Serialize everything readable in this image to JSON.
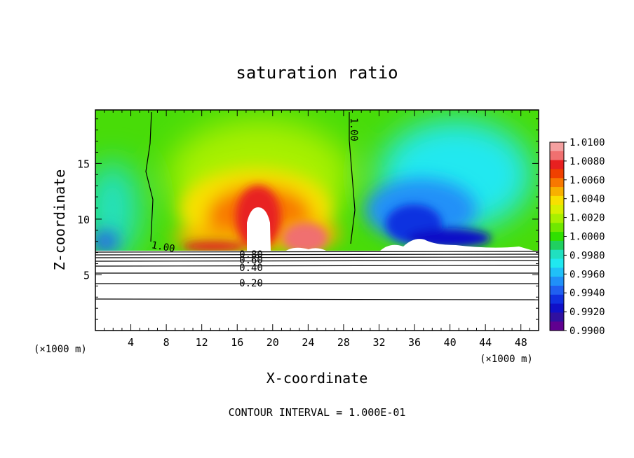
{
  "chart_data": {
    "type": "heatmap",
    "title": "saturation ratio",
    "xlabel": "X-coordinate",
    "ylabel": "Z-coordinate",
    "x_unit": "(×1000 m)",
    "z_unit": "(×1000 m)",
    "xlim": [
      0,
      50
    ],
    "ylim": [
      0,
      19.8
    ],
    "x_ticks": [
      4,
      8,
      12,
      16,
      20,
      24,
      28,
      32,
      36,
      40,
      44,
      48
    ],
    "y_ticks": [
      5,
      10,
      15
    ],
    "footer": "CONTOUR INTERVAL = 1.000E-01",
    "colorbar": {
      "min": 0.99,
      "max": 1.01,
      "labels": [
        "1.0100",
        "1.0080",
        "1.0060",
        "1.0040",
        "1.0020",
        "1.0000",
        "0.9980",
        "0.9960",
        "0.9940",
        "0.9920",
        "0.9900"
      ],
      "colors": [
        "#f4a0a0",
        "#f07070",
        "#e82020",
        "#f04000",
        "#f87800",
        "#f8b000",
        "#f8e000",
        "#d8f000",
        "#a8f000",
        "#70e800",
        "#30e000",
        "#20d060",
        "#20e0c0",
        "#20e8f0",
        "#20c0f8",
        "#2090f8",
        "#2060f0",
        "#1030e0",
        "#1010c8",
        "#3010a0",
        "#600090"
      ]
    },
    "contour_labels": [
      "1.00",
      "1.00",
      "0.80",
      "0.60",
      "0.40",
      "0.20"
    ],
    "features": {
      "cloud_base_z": 7.2,
      "cloud_top_z": 19.8,
      "contour_1_00_left_x": [
        6.2,
        7.0
      ],
      "contour_1_00_right_x": [
        28.5,
        29.5
      ],
      "supersaturated_core_x": [
        10,
        28
      ],
      "subsaturated_region_x": [
        30,
        50
      ],
      "subcloud_contours_z": [
        2.8,
        4.3,
        5.2,
        5.8,
        6.3,
        6.7,
        7.0
      ]
    }
  }
}
